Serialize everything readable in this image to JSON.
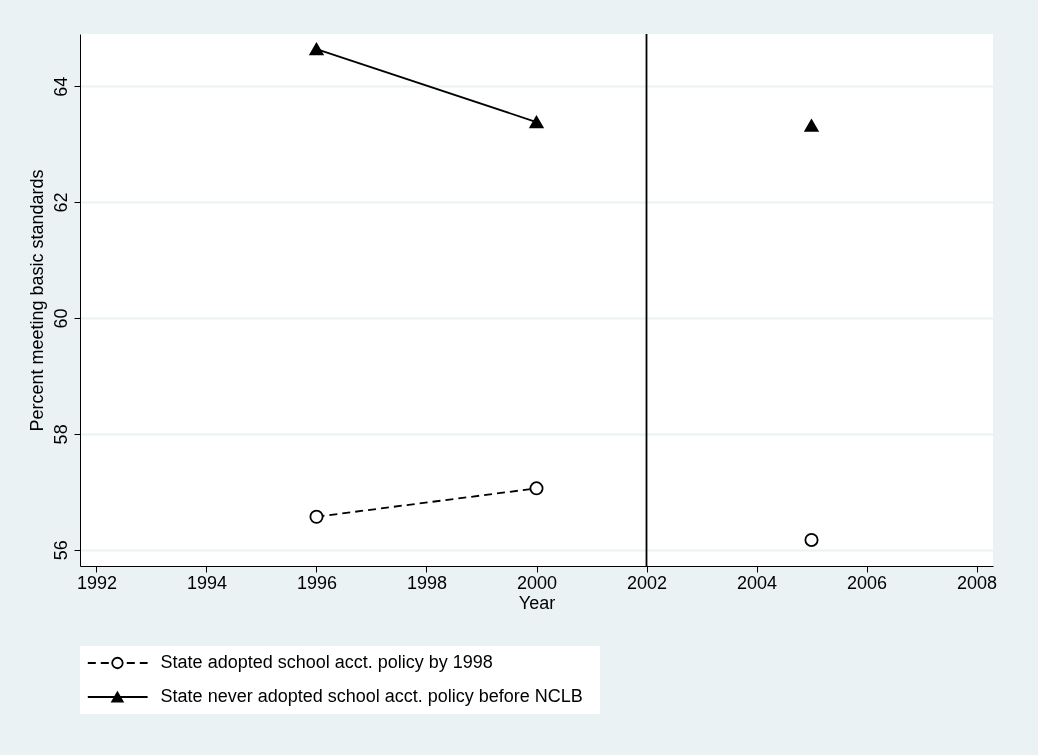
{
  "chart_data": {
    "type": "line",
    "xlabel": "Year",
    "ylabel": "Percent meeting basic standards",
    "x": [
      1996,
      2000,
      2002,
      2005
    ],
    "series": [
      {
        "name": "State adopted school acct. policy by 1998",
        "color": "#000000",
        "marker": "circle",
        "line_style": "dashed",
        "values": [
          56.57,
          57.06,
          null,
          56.17
        ]
      },
      {
        "name": "State never adopted school acct. policy before NCLB",
        "color": "#000000",
        "marker": "triangle",
        "line_style": "solid",
        "values": [
          64.64,
          63.38,
          null,
          63.32
        ]
      }
    ],
    "xlim": [
      1991.7,
      2008.3
    ],
    "xticks": [
      1992,
      1994,
      1996,
      1998,
      2000,
      2002,
      2004,
      2006,
      2008
    ],
    "ylim": [
      55.72,
      64.9
    ],
    "yticks": [
      56,
      58,
      60,
      62,
      64
    ],
    "grid": "y",
    "legend": "bottom",
    "ref_lines": [
      {
        "axis": "x",
        "value": 2002,
        "color": "#000000"
      }
    ]
  }
}
